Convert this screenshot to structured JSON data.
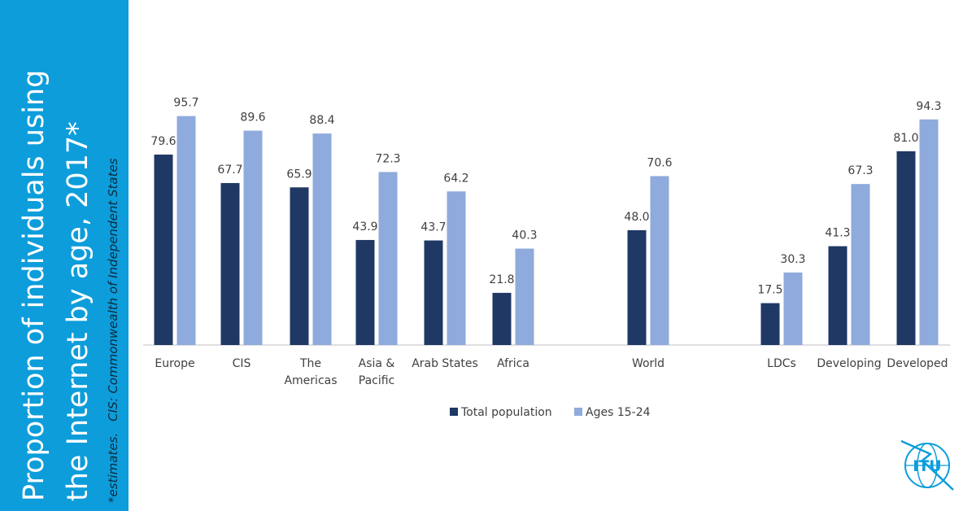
{
  "side_panel": {
    "title_line1": "Proportion of individuals using",
    "title_line2": "the Internet by age, 2017*",
    "footnote_estimates": "*estimates.",
    "footnote_cis": "CIS: Commonwealth of Independent States",
    "background_color": "#0d9ddb"
  },
  "logo": {
    "text": "ITU",
    "icon": "itu-logo-icon",
    "color": "#0d9ddb"
  },
  "chart_data": {
    "type": "bar",
    "categories": [
      "Europe",
      "CIS",
      "The Americas",
      "Asia & Pacific",
      "Arab States",
      "Africa",
      "World",
      "LDCs",
      "Developing",
      "Developed"
    ],
    "category_lines": [
      [
        "Europe"
      ],
      [
        "CIS"
      ],
      [
        "The",
        "Americas"
      ],
      [
        "Asia &",
        "Pacific"
      ],
      [
        "Arab States"
      ],
      [
        "Africa"
      ],
      [
        "World"
      ],
      [
        "LDCs"
      ],
      [
        "Developing"
      ],
      [
        "Developed"
      ]
    ],
    "series": [
      {
        "name": "Total population",
        "color": "#1f3864",
        "values": [
          79.6,
          67.7,
          65.9,
          43.9,
          43.7,
          21.8,
          48.0,
          17.5,
          41.3,
          81.0
        ]
      },
      {
        "name": "Ages 15-24",
        "color": "#8faadc",
        "values": [
          95.7,
          89.6,
          88.4,
          72.3,
          64.2,
          40.3,
          70.6,
          30.3,
          67.3,
          94.3
        ]
      }
    ],
    "ylim": [
      0,
      100
    ],
    "grid": false,
    "legend_position": "bottom-center",
    "value_labels": true
  }
}
